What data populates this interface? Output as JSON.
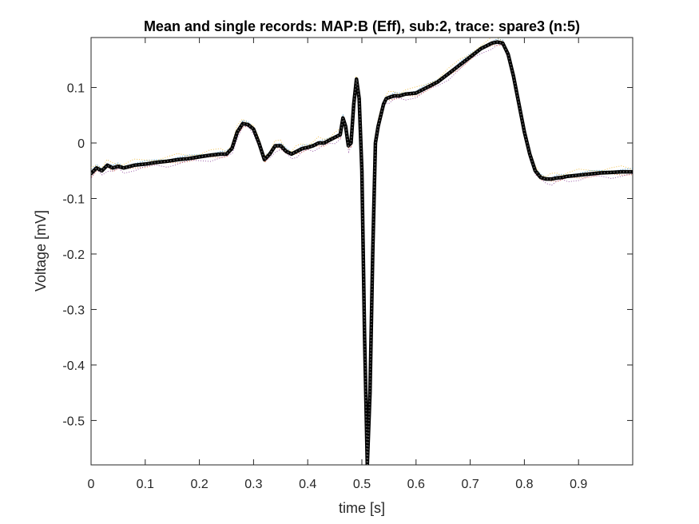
{
  "chart_data": {
    "type": "line",
    "title": "Mean and single records: MAP:B (Eff), sub:2, trace: spare3 (n:5)",
    "xlabel": "time [s]",
    "ylabel": "Voltage [mV]",
    "xlim": [
      0,
      1.0
    ],
    "ylim": [
      -0.58,
      0.19
    ],
    "xticks": [
      0,
      0.1,
      0.2,
      0.3,
      0.4,
      0.5,
      0.6,
      0.7,
      0.8,
      0.9
    ],
    "xtick_labels": [
      "0",
      "0.1",
      "0.2",
      "0.3",
      "0.4",
      "0.5",
      "0.6",
      "0.7",
      "0.8",
      "0.9"
    ],
    "yticks": [
      -0.5,
      -0.4,
      -0.3,
      -0.2,
      -0.1,
      0,
      0.1
    ],
    "ytick_labels": [
      "-0.5",
      "-0.4",
      "-0.3",
      "-0.2",
      "-0.1",
      "0",
      "0.1"
    ],
    "grid": false,
    "legend": "none",
    "colors": {
      "mean": "#000000",
      "records": [
        "#0072bd",
        "#d95319",
        "#edb120",
        "#7e2f8e",
        "#77ac30"
      ],
      "axis": "#262626"
    },
    "series": [
      {
        "style": "bold black dotted-marker mean trace",
        "x": [
          0.0,
          0.01,
          0.02,
          0.03,
          0.04,
          0.05,
          0.06,
          0.08,
          0.1,
          0.12,
          0.14,
          0.16,
          0.18,
          0.2,
          0.22,
          0.24,
          0.25,
          0.26,
          0.27,
          0.28,
          0.29,
          0.3,
          0.31,
          0.32,
          0.33,
          0.34,
          0.35,
          0.36,
          0.37,
          0.38,
          0.39,
          0.4,
          0.41,
          0.42,
          0.43,
          0.44,
          0.45,
          0.46,
          0.465,
          0.47,
          0.475,
          0.48,
          0.485,
          0.49,
          0.495,
          0.5,
          0.505,
          0.51,
          0.515,
          0.52,
          0.525,
          0.53,
          0.535,
          0.54,
          0.545,
          0.55,
          0.56,
          0.57,
          0.58,
          0.6,
          0.62,
          0.64,
          0.66,
          0.68,
          0.7,
          0.72,
          0.74,
          0.75,
          0.76,
          0.77,
          0.78,
          0.79,
          0.8,
          0.81,
          0.82,
          0.83,
          0.84,
          0.85,
          0.86,
          0.87,
          0.88,
          0.9,
          0.92,
          0.94,
          0.96,
          0.98,
          1.0
        ],
        "y": [
          -0.055,
          -0.045,
          -0.05,
          -0.04,
          -0.045,
          -0.042,
          -0.045,
          -0.04,
          -0.038,
          -0.035,
          -0.033,
          -0.03,
          -0.028,
          -0.025,
          -0.022,
          -0.02,
          -0.02,
          -0.01,
          0.02,
          0.035,
          0.033,
          0.025,
          0.0,
          -0.03,
          -0.02,
          -0.005,
          -0.005,
          -0.015,
          -0.02,
          -0.015,
          -0.01,
          -0.008,
          -0.005,
          0.0,
          0.0,
          0.005,
          0.01,
          0.015,
          0.045,
          0.03,
          -0.005,
          0.0,
          0.07,
          0.115,
          0.08,
          -0.05,
          -0.35,
          -0.58,
          -0.45,
          -0.2,
          0.0,
          0.03,
          0.05,
          0.07,
          0.08,
          0.082,
          0.085,
          0.085,
          0.088,
          0.09,
          0.1,
          0.11,
          0.125,
          0.14,
          0.155,
          0.17,
          0.18,
          0.182,
          0.18,
          0.16,
          0.12,
          0.07,
          0.02,
          -0.02,
          -0.05,
          -0.062,
          -0.065,
          -0.065,
          -0.063,
          -0.062,
          -0.06,
          -0.058,
          -0.056,
          -0.054,
          -0.053,
          -0.052,
          -0.052
        ]
      }
    ]
  }
}
